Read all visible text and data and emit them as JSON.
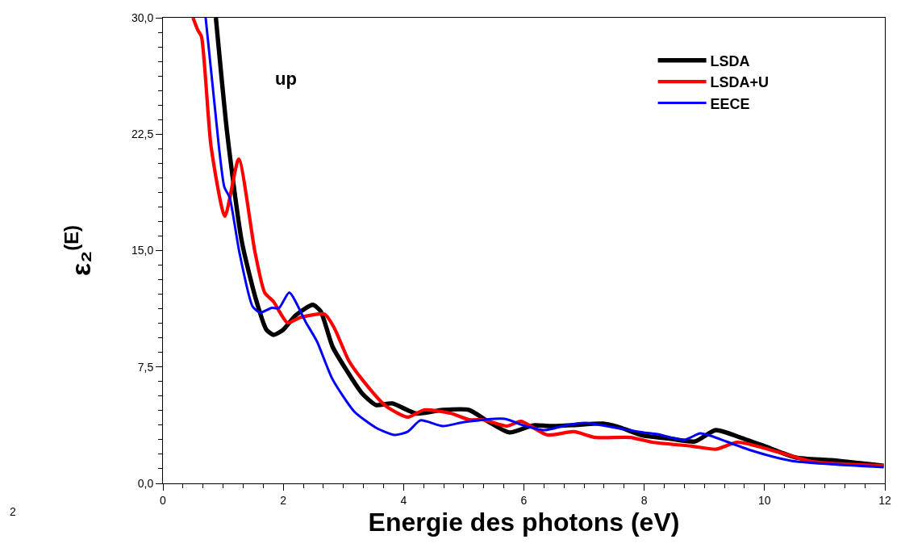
{
  "chart_data": {
    "type": "line",
    "xlabel": "Energie des photons (eV)",
    "ylabel": "ε₂$^{(E)}$",
    "annotations": [
      "up",
      "2"
    ],
    "xlim": [
      0,
      12
    ],
    "xticks": [
      0,
      2,
      4,
      6,
      8,
      10,
      12
    ],
    "ylim": [
      0,
      30
    ],
    "yticks": [
      {
        "value": 0,
        "label": "0,0"
      },
      {
        "value": 7.5,
        "label": "7,5"
      },
      {
        "value": 15,
        "label": "15,0"
      },
      {
        "value": 22.5,
        "label": "22,5"
      },
      {
        "value": 30,
        "label": "30,0"
      }
    ],
    "legend": "top right",
    "marker": "none",
    "line_style": "solid",
    "series": [
      {
        "name": "LSDA",
        "color": "#000000",
        "x": [
          0.88,
          1.07,
          1.31,
          1.55,
          1.72,
          1.84,
          2.0,
          2.2,
          2.49,
          2.62,
          2.82,
          3.05,
          3.31,
          3.54,
          3.81,
          4.21,
          4.65,
          5.09,
          5.4,
          5.76,
          6.16,
          6.43,
          6.8,
          7.32,
          7.6,
          7.99,
          8.4,
          8.84,
          9.19,
          9.6,
          10.0,
          10.53,
          11.1,
          11.98
        ],
        "values": [
          30,
          22.5,
          15.6,
          11.8,
          9.9,
          9.57,
          9.9,
          10.8,
          11.5,
          11.1,
          8.8,
          7.3,
          5.8,
          5.05,
          5.15,
          4.5,
          4.73,
          4.73,
          4.0,
          3.28,
          3.74,
          3.69,
          3.75,
          3.85,
          3.6,
          3.07,
          2.9,
          2.7,
          3.43,
          2.95,
          2.4,
          1.66,
          1.5,
          1.14
        ]
      },
      {
        "name": "LSDA+U",
        "color": "#ff0000",
        "x": [
          0.5,
          0.58,
          0.64,
          0.8,
          1.03,
          1.26,
          1.53,
          1.69,
          1.84,
          2.07,
          2.29,
          2.69,
          2.85,
          3.09,
          3.31,
          3.7,
          4.07,
          4.34,
          4.78,
          5.09,
          5.32,
          5.72,
          5.95,
          6.39,
          6.83,
          7.19,
          7.77,
          8.13,
          8.79,
          9.19,
          9.55,
          10.22,
          10.8,
          11.98
        ],
        "values": [
          30,
          29.2,
          28.8,
          21.7,
          17.2,
          20.9,
          14.9,
          12.3,
          11.7,
          10.35,
          10.7,
          10.9,
          10.0,
          7.9,
          6.7,
          5.0,
          4.27,
          4.73,
          4.52,
          4.1,
          4.1,
          3.69,
          4.0,
          3.12,
          3.33,
          2.96,
          2.96,
          2.65,
          2.4,
          2.2,
          2.65,
          2.03,
          1.4,
          1.14
        ]
      },
      {
        "name": "EECE",
        "color": "#0000ff",
        "x": [
          0.71,
          0.93,
          1.02,
          1.11,
          1.27,
          1.49,
          1.62,
          1.8,
          1.93,
          2.1,
          2.38,
          2.56,
          2.82,
          3.18,
          3.54,
          3.85,
          4.07,
          4.28,
          4.65,
          5.01,
          5.68,
          5.99,
          6.35,
          6.7,
          7.02,
          7.5,
          7.99,
          8.22,
          8.66,
          8.93,
          9.1,
          9.77,
          10.44,
          11.98
        ],
        "values": [
          30,
          21.7,
          19.1,
          18.4,
          14.9,
          11.4,
          11.0,
          11.3,
          11.3,
          12.3,
          10.35,
          9.15,
          6.7,
          4.63,
          3.59,
          3.12,
          3.33,
          4.06,
          3.69,
          3.95,
          4.16,
          3.74,
          3.43,
          3.74,
          3.9,
          3.6,
          3.28,
          3.17,
          2.8,
          3.22,
          3.07,
          2.13,
          1.46,
          1.04
        ]
      }
    ]
  }
}
